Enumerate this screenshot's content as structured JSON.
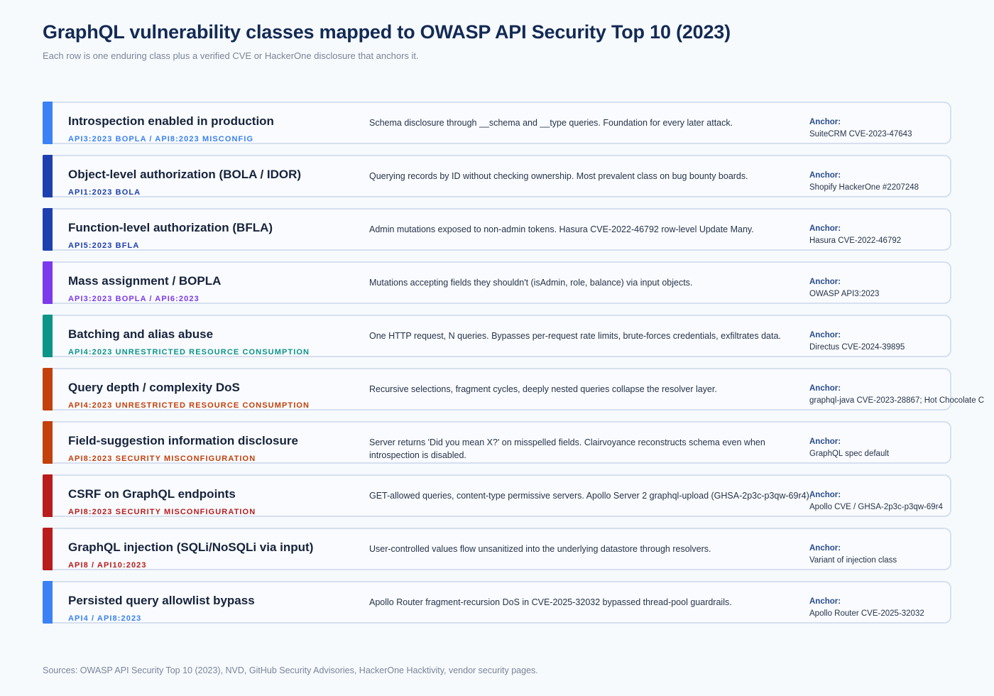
{
  "header": {
    "title": "GraphQL vulnerability classes mapped to OWASP API Security Top 10 (2023)",
    "subtitle": "Each row is one enduring class plus a verified CVE or HackerOne disclosure that anchors it."
  },
  "anchor_label": "Anchor:",
  "rows": [
    {
      "title": "Introspection enabled in production",
      "tag": "API3:2023 BOPLA / API8:2023 MISCONFIG",
      "color": "#3b82f6",
      "description": "Schema disclosure through __schema and __type queries. Foundation for every later attack.",
      "anchor": "SuiteCRM CVE-2023-47643"
    },
    {
      "title": "Object-level authorization (BOLA / IDOR)",
      "tag": "API1:2023 BOLA",
      "color": "#1e40af",
      "description": "Querying records by ID without checking ownership. Most prevalent class on bug bounty boards.",
      "anchor": "Shopify HackerOne #2207248"
    },
    {
      "title": "Function-level authorization (BFLA)",
      "tag": "API5:2023 BFLA",
      "color": "#1e40af",
      "description": "Admin mutations exposed to non-admin tokens. Hasura CVE-2022-46792 row-level Update Many.",
      "anchor": "Hasura CVE-2022-46792"
    },
    {
      "title": "Mass assignment / BOPLA",
      "tag": "API3:2023 BOPLA / API6:2023",
      "color": "#7c3aed",
      "description": "Mutations accepting fields they shouldn't (isAdmin, role, balance) via input objects.",
      "anchor": "OWASP API3:2023"
    },
    {
      "title": "Batching and alias abuse",
      "tag": "API4:2023 UNRESTRICTED RESOURCE CONSUMPTION",
      "color": "#0d9488",
      "description": "One HTTP request, N queries. Bypasses per-request rate limits, brute-forces credentials, exfiltrates data.",
      "anchor": "Directus CVE-2024-39895"
    },
    {
      "title": "Query depth / complexity DoS",
      "tag": "API4:2023 UNRESTRICTED RESOURCE CONSUMPTION",
      "color": "#c2410c",
      "description": "Recursive selections, fragment cycles, deeply nested queries collapse the resolver layer.",
      "anchor": "graphql-java CVE-2023-28867; Hot Chocolate C"
    },
    {
      "title": "Field-suggestion information disclosure",
      "tag": "API8:2023 SECURITY MISCONFIGURATION",
      "color": "#c2410c",
      "description": "Server returns 'Did you mean X?' on misspelled fields. Clairvoyance reconstructs schema even when introspection is disabled.",
      "anchor": "GraphQL spec default"
    },
    {
      "title": "CSRF on GraphQL endpoints",
      "tag": "API8:2023 SECURITY MISCONFIGURATION",
      "color": "#b91c1c",
      "description": "GET-allowed queries, content-type permissive servers. Apollo Server 2 graphql-upload (GHSA-2p3c-p3qw-69r4).",
      "anchor": "Apollo CVE / GHSA-2p3c-p3qw-69r4"
    },
    {
      "title": "GraphQL injection (SQLi/NoSQLi via input)",
      "tag": "API8 / API10:2023",
      "color": "#b91c1c",
      "description": "User-controlled values flow unsanitized into the underlying datastore through resolvers.",
      "anchor": "Variant of injection class"
    },
    {
      "title": "Persisted query allowlist bypass",
      "tag": "API4 / API8:2023",
      "color": "#3b82f6",
      "description": "Apollo Router fragment-recursion DoS in CVE-2025-32032 bypassed thread-pool guardrails.",
      "anchor": "Apollo Router CVE-2025-32032"
    }
  ],
  "footer": {
    "sources": "Sources: OWASP API Security Top 10 (2023), NVD, GitHub Security Advisories, HackerOne Hacktivity, vendor security pages."
  }
}
